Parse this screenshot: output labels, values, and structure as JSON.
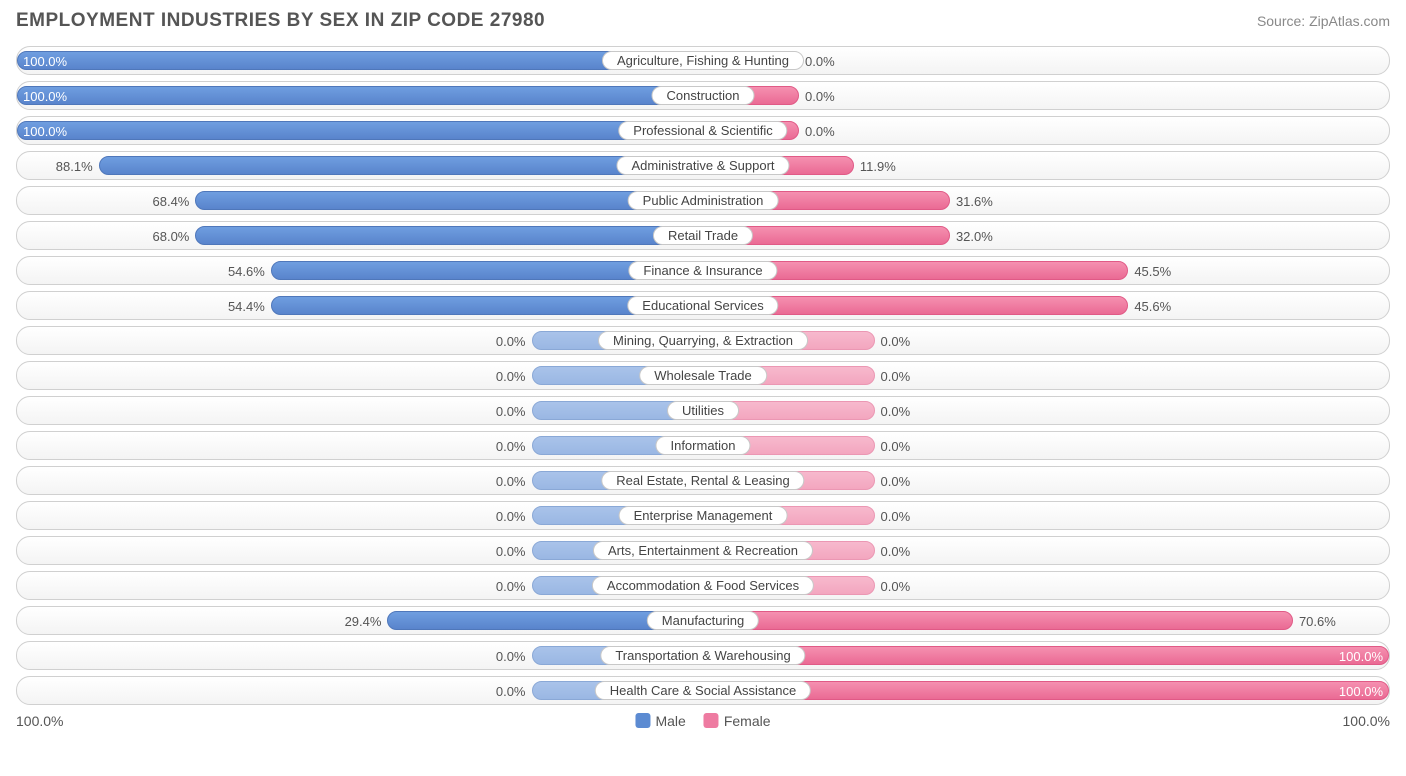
{
  "title": "EMPLOYMENT INDUSTRIES BY SEX IN ZIP CODE 27980",
  "source": "Source: ZipAtlas.com",
  "colors": {
    "male": "#5c8bd2",
    "female": "#ee7ba1",
    "male_dim": "#9fbae6",
    "female_dim": "#f4adc5",
    "border": "#d0d0d0",
    "text": "#555555",
    "bg": "#ffffff"
  },
  "axis": {
    "left": "100.0%",
    "right": "100.0%"
  },
  "legend": {
    "male": "Male",
    "female": "Female"
  },
  "rows": [
    {
      "label": "Agriculture, Fishing & Hunting",
      "male_pct": 100.0,
      "female_pct": 0.0,
      "male_bar": 100.0,
      "female_bar": 14.0,
      "dim": false
    },
    {
      "label": "Construction",
      "male_pct": 100.0,
      "female_pct": 0.0,
      "male_bar": 100.0,
      "female_bar": 14.0,
      "dim": false
    },
    {
      "label": "Professional & Scientific",
      "male_pct": 100.0,
      "female_pct": 0.0,
      "male_bar": 100.0,
      "female_bar": 14.0,
      "dim": false
    },
    {
      "label": "Administrative & Support",
      "male_pct": 88.1,
      "female_pct": 11.9,
      "male_bar": 88.1,
      "female_bar": 22.0,
      "dim": false
    },
    {
      "label": "Public Administration",
      "male_pct": 68.4,
      "female_pct": 31.6,
      "male_bar": 74.0,
      "female_bar": 36.0,
      "dim": false
    },
    {
      "label": "Retail Trade",
      "male_pct": 68.0,
      "female_pct": 32.0,
      "male_bar": 74.0,
      "female_bar": 36.0,
      "dim": false
    },
    {
      "label": "Finance & Insurance",
      "male_pct": 54.6,
      "female_pct": 45.5,
      "male_bar": 63.0,
      "female_bar": 62.0,
      "dim": false
    },
    {
      "label": "Educational Services",
      "male_pct": 54.4,
      "female_pct": 45.6,
      "male_bar": 63.0,
      "female_bar": 62.0,
      "dim": false
    },
    {
      "label": "Mining, Quarrying, & Extraction",
      "male_pct": 0.0,
      "female_pct": 0.0,
      "male_bar": 25.0,
      "female_bar": 25.0,
      "dim": true
    },
    {
      "label": "Wholesale Trade",
      "male_pct": 0.0,
      "female_pct": 0.0,
      "male_bar": 25.0,
      "female_bar": 25.0,
      "dim": true
    },
    {
      "label": "Utilities",
      "male_pct": 0.0,
      "female_pct": 0.0,
      "male_bar": 25.0,
      "female_bar": 25.0,
      "dim": true
    },
    {
      "label": "Information",
      "male_pct": 0.0,
      "female_pct": 0.0,
      "male_bar": 25.0,
      "female_bar": 25.0,
      "dim": true
    },
    {
      "label": "Real Estate, Rental & Leasing",
      "male_pct": 0.0,
      "female_pct": 0.0,
      "male_bar": 25.0,
      "female_bar": 25.0,
      "dim": true
    },
    {
      "label": "Enterprise Management",
      "male_pct": 0.0,
      "female_pct": 0.0,
      "male_bar": 25.0,
      "female_bar": 25.0,
      "dim": true
    },
    {
      "label": "Arts, Entertainment & Recreation",
      "male_pct": 0.0,
      "female_pct": 0.0,
      "male_bar": 25.0,
      "female_bar": 25.0,
      "dim": true
    },
    {
      "label": "Accommodation & Food Services",
      "male_pct": 0.0,
      "female_pct": 0.0,
      "male_bar": 25.0,
      "female_bar": 25.0,
      "dim": true
    },
    {
      "label": "Manufacturing",
      "male_pct": 29.4,
      "female_pct": 70.6,
      "male_bar": 46.0,
      "female_bar": 86.0,
      "dim": false
    },
    {
      "label": "Transportation & Warehousing",
      "male_pct": 0.0,
      "female_pct": 100.0,
      "male_bar": 25.0,
      "female_bar": 100.0,
      "dim": false,
      "male_dim": true
    },
    {
      "label": "Health Care & Social Assistance",
      "male_pct": 0.0,
      "female_pct": 100.0,
      "male_bar": 25.0,
      "female_bar": 100.0,
      "dim": false,
      "male_dim": true
    }
  ]
}
